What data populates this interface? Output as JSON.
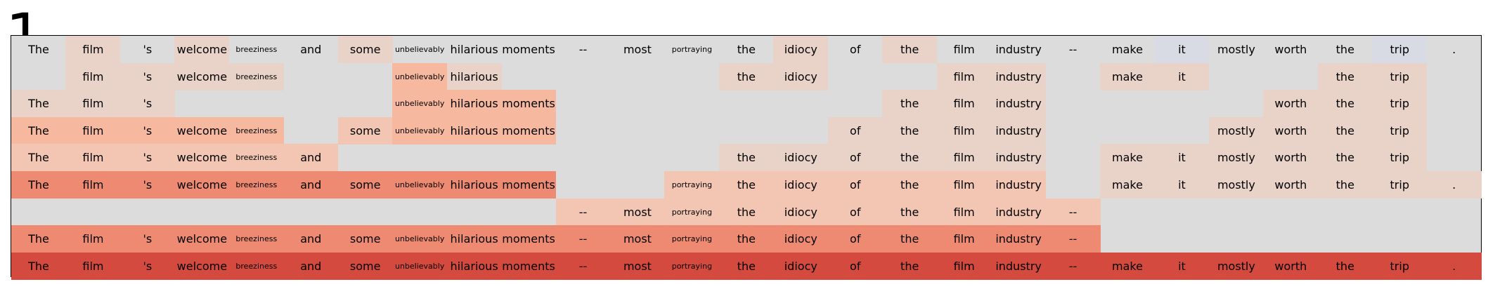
{
  "panel_label": "1",
  "tokens": [
    "The",
    "film",
    "'s",
    "welcome",
    "breeziness",
    "and",
    "some",
    "unbelievably",
    "hilarious",
    "moments",
    "--",
    "most",
    "portraying",
    "the",
    "idiocy",
    "of",
    "the",
    "film",
    "industry",
    "--",
    "make",
    "it",
    "mostly",
    "worth",
    "the",
    "trip",
    "."
  ],
  "small_tokens": [
    4,
    7,
    12
  ],
  "colors": {
    "background": "#dcdcdc",
    "neg_light": "#d8dbe3",
    "light": "#e9d3c8",
    "medium_light": "#f2c6b2",
    "medium": "#f6b9a0",
    "strong": "#ee8a71",
    "strongest": "#d54a3e"
  },
  "rows": [
    {
      "visible": [
        0,
        1,
        2,
        3,
        4,
        5,
        6,
        7,
        8,
        9,
        10,
        11,
        12,
        13,
        14,
        15,
        16,
        17,
        18,
        19,
        20,
        21,
        22,
        23,
        24,
        25,
        26
      ],
      "tone": [
        "",
        "light",
        "",
        "light",
        "",
        "",
        "light",
        "",
        "",
        "",
        "",
        "",
        "",
        "",
        "light",
        "",
        "light",
        "",
        "",
        "",
        "",
        "neg_light",
        "",
        "",
        "",
        "neg_light",
        ""
      ]
    },
    {
      "visible": [
        1,
        2,
        3,
        4,
        7,
        8,
        13,
        14,
        17,
        18,
        20,
        21,
        24,
        25
      ],
      "tone": [
        "",
        "light",
        "light",
        "light",
        "light",
        "",
        "",
        "medium",
        "light",
        "",
        "",
        "",
        "",
        "light",
        "light",
        "",
        "",
        "light",
        "light",
        "",
        "light",
        "light",
        "",
        "",
        "light",
        "light",
        ""
      ]
    },
    {
      "visible": [
        0,
        1,
        2,
        7,
        8,
        9,
        16,
        17,
        18,
        23,
        24,
        25
      ],
      "tone": [
        "light",
        "light",
        "light",
        "",
        "",
        "",
        "",
        "medium",
        "medium",
        "medium",
        "",
        "",
        "",
        "",
        "",
        "",
        "light",
        "light",
        "light",
        "",
        "",
        "",
        "",
        "light",
        "light",
        "light",
        ""
      ]
    },
    {
      "visible": [
        0,
        1,
        2,
        3,
        4,
        6,
        7,
        8,
        9,
        15,
        16,
        17,
        18,
        22,
        23,
        24,
        25
      ],
      "tone": [
        "medium",
        "medium",
        "medium",
        "medium",
        "medium",
        "",
        "medium_light",
        "medium",
        "medium",
        "medium",
        "",
        "",
        "",
        "",
        "",
        "light",
        "light",
        "light",
        "light",
        "",
        "",
        "",
        "light",
        "light",
        "light",
        "light",
        ""
      ]
    },
    {
      "visible": [
        0,
        1,
        2,
        3,
        4,
        5,
        13,
        14,
        15,
        16,
        17,
        18,
        20,
        21,
        22,
        23,
        24,
        25
      ],
      "tone": [
        "medium_light",
        "medium_light",
        "medium_light",
        "medium_light",
        "medium_light",
        "medium_light",
        "",
        "",
        "",
        "",
        "",
        "",
        "",
        "light",
        "light",
        "light",
        "light",
        "light",
        "light",
        "",
        "light",
        "light",
        "light",
        "light",
        "light",
        "light",
        ""
      ]
    },
    {
      "visible": [
        0,
        1,
        2,
        3,
        4,
        5,
        6,
        7,
        8,
        9,
        12,
        13,
        14,
        15,
        16,
        17,
        18,
        20,
        21,
        22,
        23,
        24,
        25,
        26
      ],
      "tone": [
        "strong",
        "strong",
        "strong",
        "strong",
        "strong",
        "strong",
        "strong",
        "strong",
        "strong",
        "strong",
        "",
        "",
        "medium_light",
        "medium_light",
        "medium_light",
        "medium_light",
        "medium_light",
        "medium_light",
        "medium_light",
        "",
        "light",
        "light",
        "light",
        "light",
        "light",
        "light",
        "light"
      ]
    },
    {
      "visible": [
        10,
        11,
        12,
        13,
        14,
        15,
        16,
        17,
        18,
        19
      ],
      "tone": [
        "",
        "",
        "",
        "",
        "",
        "",
        "",
        "",
        "",
        "",
        "medium_light",
        "medium_light",
        "medium_light",
        "medium_light",
        "medium_light",
        "medium_light",
        "medium_light",
        "medium_light",
        "medium_light",
        "medium_light",
        "",
        "",
        "",
        "",
        "",
        "",
        ""
      ]
    },
    {
      "visible": [
        0,
        1,
        2,
        3,
        4,
        5,
        6,
        7,
        8,
        9,
        10,
        11,
        12,
        13,
        14,
        15,
        16,
        17,
        18,
        19
      ],
      "tone": [
        "strong",
        "strong",
        "strong",
        "strong",
        "strong",
        "strong",
        "strong",
        "strong",
        "strong",
        "strong",
        "strong",
        "strong",
        "strong",
        "strong",
        "strong",
        "strong",
        "strong",
        "strong",
        "strong",
        "strong",
        "",
        "",
        "",
        "",
        "",
        "",
        ""
      ]
    },
    {
      "visible": [
        0,
        1,
        2,
        3,
        4,
        5,
        6,
        7,
        8,
        9,
        10,
        11,
        12,
        13,
        14,
        15,
        16,
        17,
        18,
        19,
        20,
        21,
        22,
        23,
        24,
        25,
        26
      ],
      "tone": [
        "strongest",
        "strongest",
        "strongest",
        "strongest",
        "strongest",
        "strongest",
        "strongest",
        "strongest",
        "strongest",
        "strongest",
        "strongest",
        "strongest",
        "strongest",
        "strongest",
        "strongest",
        "strongest",
        "strongest",
        "strongest",
        "strongest",
        "strongest",
        "strongest",
        "strongest",
        "strongest",
        "strongest",
        "strongest",
        "strongest",
        "strongest"
      ]
    }
  ]
}
